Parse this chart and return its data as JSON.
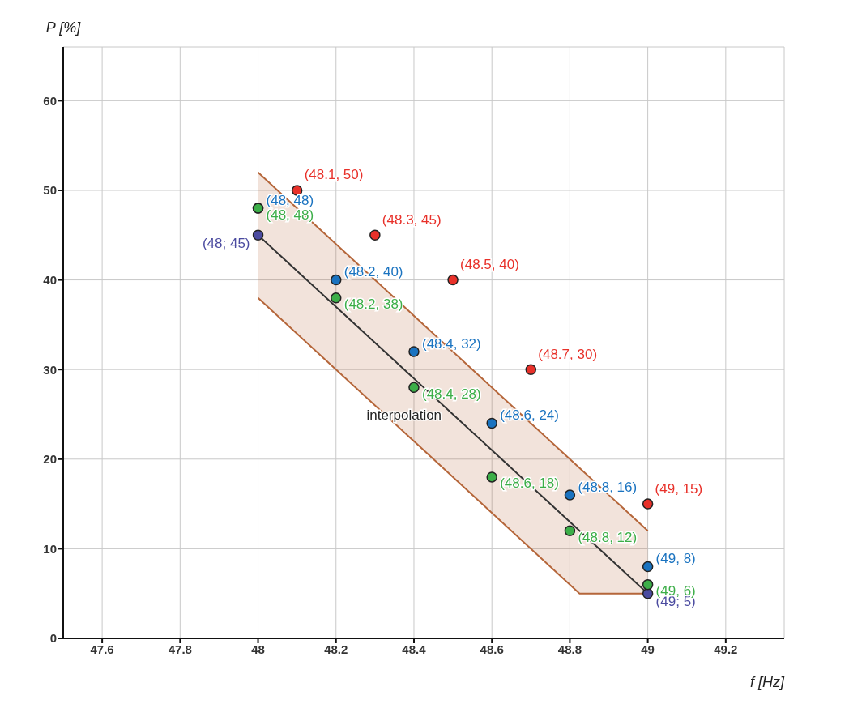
{
  "chart_data": {
    "type": "scatter",
    "xlabel": "f [Hz]",
    "ylabel": "P [%]",
    "xlim": [
      47.5,
      49.35
    ],
    "ylim": [
      0,
      66
    ],
    "xticks": [
      47.6,
      47.8,
      48,
      48.2,
      48.4,
      48.6,
      48.8,
      49,
      49.2
    ],
    "yticks": [
      0,
      10,
      20,
      30,
      40,
      50,
      60
    ],
    "grid": true,
    "legend": false,
    "marker": "circle",
    "series": [
      {
        "type": "line",
        "name": "interpolation",
        "color": "#333333",
        "line_style": "solid",
        "marker": "none",
        "x": [
          48,
          48.825,
          49
        ],
        "values": [
          45,
          12,
          5
        ],
        "lower": [
          38,
          5,
          5
        ],
        "upper": [
          52,
          19,
          12
        ]
      },
      {
        "color": "#4b4ba0",
        "x": [
          48,
          49
        ],
        "values": [
          45,
          5
        ],
        "value_labels": [
          "(48; 45)",
          "(49; 5)"
        ]
      },
      {
        "color": "#e8312a",
        "x": [
          48.1,
          48.3,
          48.5,
          48.7,
          49
        ],
        "values": [
          50,
          45,
          40,
          30,
          15
        ],
        "value_labels": [
          "(48.1, 50)",
          "(48.3, 45)",
          "(48.5, 40)",
          "(48.7, 30)",
          "(49, 15)"
        ]
      },
      {
        "color": "#1a73c0",
        "x": [
          48,
          48.2,
          48.4,
          48.6,
          48.8,
          49
        ],
        "values": [
          48,
          40,
          32,
          24,
          16,
          8
        ],
        "value_labels": [
          "(48, 48)",
          "(48.2, 40)",
          "(48.4, 32)",
          "(48.6, 24)",
          "(48.8, 16)",
          "(49, 8)"
        ]
      },
      {
        "color": "#3cae48",
        "x": [
          48,
          48.2,
          48.4,
          48.6,
          48.8,
          49
        ],
        "values": [
          48,
          38,
          28,
          18,
          12,
          6
        ],
        "value_labels": [
          "(48, 48)",
          "(48.2, 38)",
          "(48.4, 28)",
          "(48.6, 18)",
          "(48.8, 12)",
          "(49, 6)"
        ]
      }
    ]
  }
}
